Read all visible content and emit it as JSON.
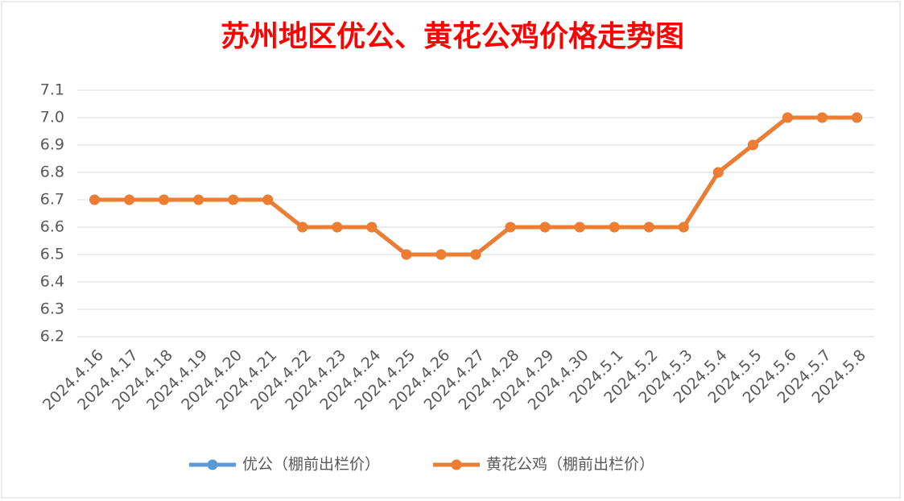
{
  "chart_data": {
    "type": "line",
    "title": "苏州地区优公、黄花公鸡价格走势图",
    "categories": [
      "2024.4.16",
      "2024.4.17",
      "2024.4.18",
      "2024.4.19",
      "2024.4.20",
      "2024.4.21",
      "2024.4.22",
      "2024.4.23",
      "2024.4.24",
      "2024.4.25",
      "2024.4.26",
      "2024.4.27",
      "2024.4.28",
      "2024.4.29",
      "2024.4.30",
      "2024.5.1",
      "2024.5.2",
      "2024.5.3",
      "2024.5.4",
      "2024.5.5",
      "2024.5.6",
      "2024.5.7",
      "2024.5.8"
    ],
    "series": [
      {
        "name": "优公（棚前出栏价）",
        "color": "#5b9bd5",
        "values": [
          6.7,
          6.7,
          6.7,
          6.7,
          6.7,
          6.7,
          6.6,
          6.6,
          6.6,
          6.5,
          6.5,
          6.5,
          6.6,
          6.6,
          6.6,
          6.6,
          6.6,
          6.6,
          6.8,
          6.9,
          7.0,
          7.0,
          7.0
        ]
      },
      {
        "name": "黄花公鸡（棚前出栏价）",
        "color": "#ed7d31",
        "values": [
          6.7,
          6.7,
          6.7,
          6.7,
          6.7,
          6.7,
          6.6,
          6.6,
          6.6,
          6.5,
          6.5,
          6.5,
          6.6,
          6.6,
          6.6,
          6.6,
          6.6,
          6.6,
          6.8,
          6.9,
          7.0,
          7.0,
          7.0
        ]
      }
    ],
    "ylim": [
      6.2,
      7.1
    ],
    "yticks": [
      6.2,
      6.3,
      6.4,
      6.5,
      6.6,
      6.7,
      6.8,
      6.9,
      {
        "value": 7,
        "label": "7.0"
      },
      7.1
    ],
    "grid": true,
    "legend": "bottom"
  }
}
